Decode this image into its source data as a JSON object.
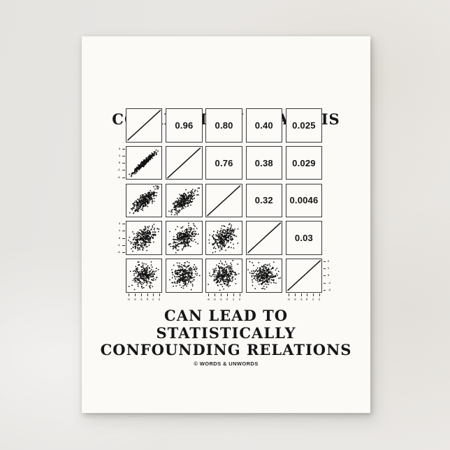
{
  "title": "CORRELATION ANALYSIS",
  "subtitle_lines": [
    "CAN LEAD TO",
    "STATISTICALLY",
    "CONFOUNDING RELATIONS"
  ],
  "copyright": "© WORDS & UNWORDS",
  "palette": {
    "background_marble": "#e9e7e4",
    "postcard": "#fbfaf7",
    "ink": "#161616",
    "panel_border": "#3a3a3a"
  },
  "chart_data": {
    "type": "scatter",
    "title": "CORRELATION ANALYSIS",
    "layout": "5x5 scatterplot correlation matrix (R pairs plot): identity lines on diagonal, scatterplots in lower triangle, correlation coefficients in upper triangle",
    "axis_range": [
      -3,
      3
    ],
    "upper_triangle_correlations": [
      [
        0.96,
        0.8,
        0.4,
        0.025
      ],
      [
        0.76,
        0.38,
        0.029
      ],
      [
        0.32,
        0.0046
      ],
      [
        0.03
      ]
    ],
    "diagonal": "identity line y = x",
    "lower_triangle": "scatter clouds whose correlation mirrors the transposed upper-triangle value",
    "cells": [
      [
        {
          "type": "line"
        },
        {
          "type": "value",
          "label": "0.96",
          "value": 0.96
        },
        {
          "type": "value",
          "label": "0.80",
          "value": 0.8
        },
        {
          "type": "value",
          "label": "0.40",
          "value": 0.4
        },
        {
          "type": "value",
          "label": "0.025",
          "value": 0.025
        }
      ],
      [
        {
          "type": "scatter",
          "r": 0.96
        },
        {
          "type": "line"
        },
        {
          "type": "value",
          "label": "0.76",
          "value": 0.76
        },
        {
          "type": "value",
          "label": "0.38",
          "value": 0.38
        },
        {
          "type": "value",
          "label": "0.029",
          "value": 0.029
        }
      ],
      [
        {
          "type": "scatter",
          "r": 0.8
        },
        {
          "type": "scatter",
          "r": 0.76
        },
        {
          "type": "line"
        },
        {
          "type": "value",
          "label": "0.32",
          "value": 0.32
        },
        {
          "type": "value",
          "label": "0.0046",
          "value": 0.0046
        }
      ],
      [
        {
          "type": "scatter",
          "r": 0.4
        },
        {
          "type": "scatter",
          "r": 0.38
        },
        {
          "type": "scatter",
          "r": 0.32
        },
        {
          "type": "line"
        },
        {
          "type": "value",
          "label": "0.03",
          "value": 0.03
        }
      ],
      [
        {
          "type": "scatter",
          "r": 0.025
        },
        {
          "type": "scatter",
          "r": 0.029
        },
        {
          "type": "scatter",
          "r": 0.0046
        },
        {
          "type": "scatter",
          "r": 0.03
        },
        {
          "type": "line"
        }
      ]
    ],
    "ticks": {
      "top_cols": [
        2,
        4
      ],
      "bottom_cols": [
        1,
        3,
        5
      ],
      "left_rows": [
        2,
        4
      ],
      "right_rows": [
        1,
        3,
        5
      ],
      "top_labels": [
        "-2",
        "-1",
        "0",
        "1",
        "2"
      ],
      "bottom_labels": [
        "-3",
        "-2",
        "-1",
        "0",
        "1",
        "2"
      ],
      "side_labels": [
        "2",
        "1",
        "0",
        "-1",
        "-2"
      ]
    },
    "points_per_scatter": 300,
    "grid": false,
    "legend": "none"
  }
}
